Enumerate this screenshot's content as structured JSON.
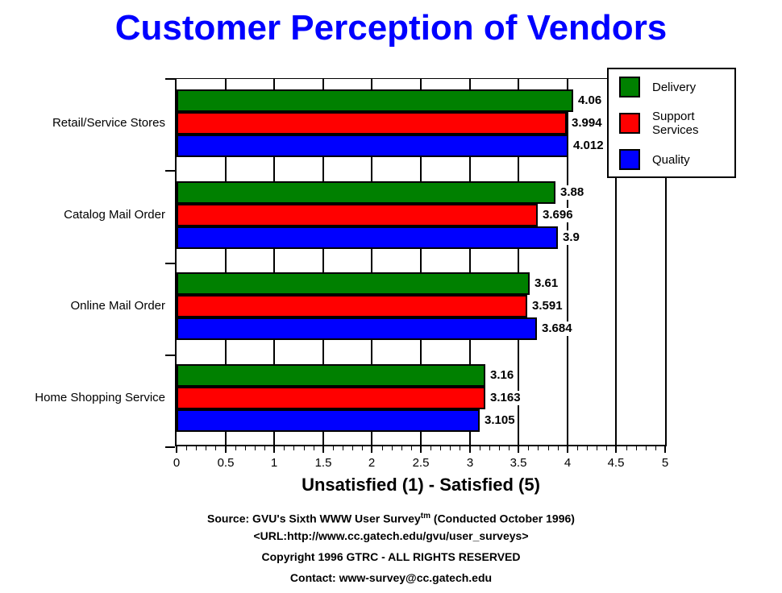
{
  "title": "Customer Perception of Vendors",
  "colors": {
    "title": "#0000ff",
    "axis": "#000000",
    "background": "#ffffff",
    "delivery": "#008000",
    "support_services": "#ff0000",
    "quality": "#0000ff"
  },
  "chart_data": {
    "type": "bar",
    "orientation": "horizontal",
    "title": "Customer Perception of Vendors",
    "xlabel": "Unsatisfied (1) - Satisfied (5)",
    "xlim": [
      0,
      5
    ],
    "xticks": [
      0,
      0.5,
      1,
      1.5,
      2,
      2.5,
      3,
      3.5,
      4,
      4.5,
      5
    ],
    "minor_tick_step": 0.1,
    "grid": true,
    "value_labels": true,
    "legend_position": "top-right",
    "categories": [
      "Retail/Service Stores",
      "Catalog Mail Order",
      "Online Mail Order",
      "Home Shopping Service"
    ],
    "series": [
      {
        "name": "Delivery",
        "color": "#008000",
        "values": [
          4.06,
          3.88,
          3.61,
          3.16
        ]
      },
      {
        "name": "Support Services",
        "color": "#ff0000",
        "values": [
          3.994,
          3.696,
          3.591,
          3.163
        ]
      },
      {
        "name": "Quality",
        "color": "#0000ff",
        "values": [
          4.012,
          3.9,
          3.684,
          3.105
        ]
      }
    ]
  },
  "legend": {
    "items": [
      {
        "label": "Delivery",
        "color": "#008000"
      },
      {
        "label": "Support Services",
        "color": "#ff0000"
      },
      {
        "label": "Quality",
        "color": "#0000ff"
      }
    ]
  },
  "footer": {
    "source_prefix": "Source: GVU's Sixth WWW User Survey",
    "source_sup": "tm",
    "source_suffix": " (Conducted October 1996)",
    "url_line": "<URL:http://www.cc.gatech.edu/gvu/user_surveys>",
    "copyright_line": "Copyright 1996 GTRC -  ALL RIGHTS RESERVED",
    "contact_line": "Contact: www-survey@cc.gatech.edu"
  }
}
